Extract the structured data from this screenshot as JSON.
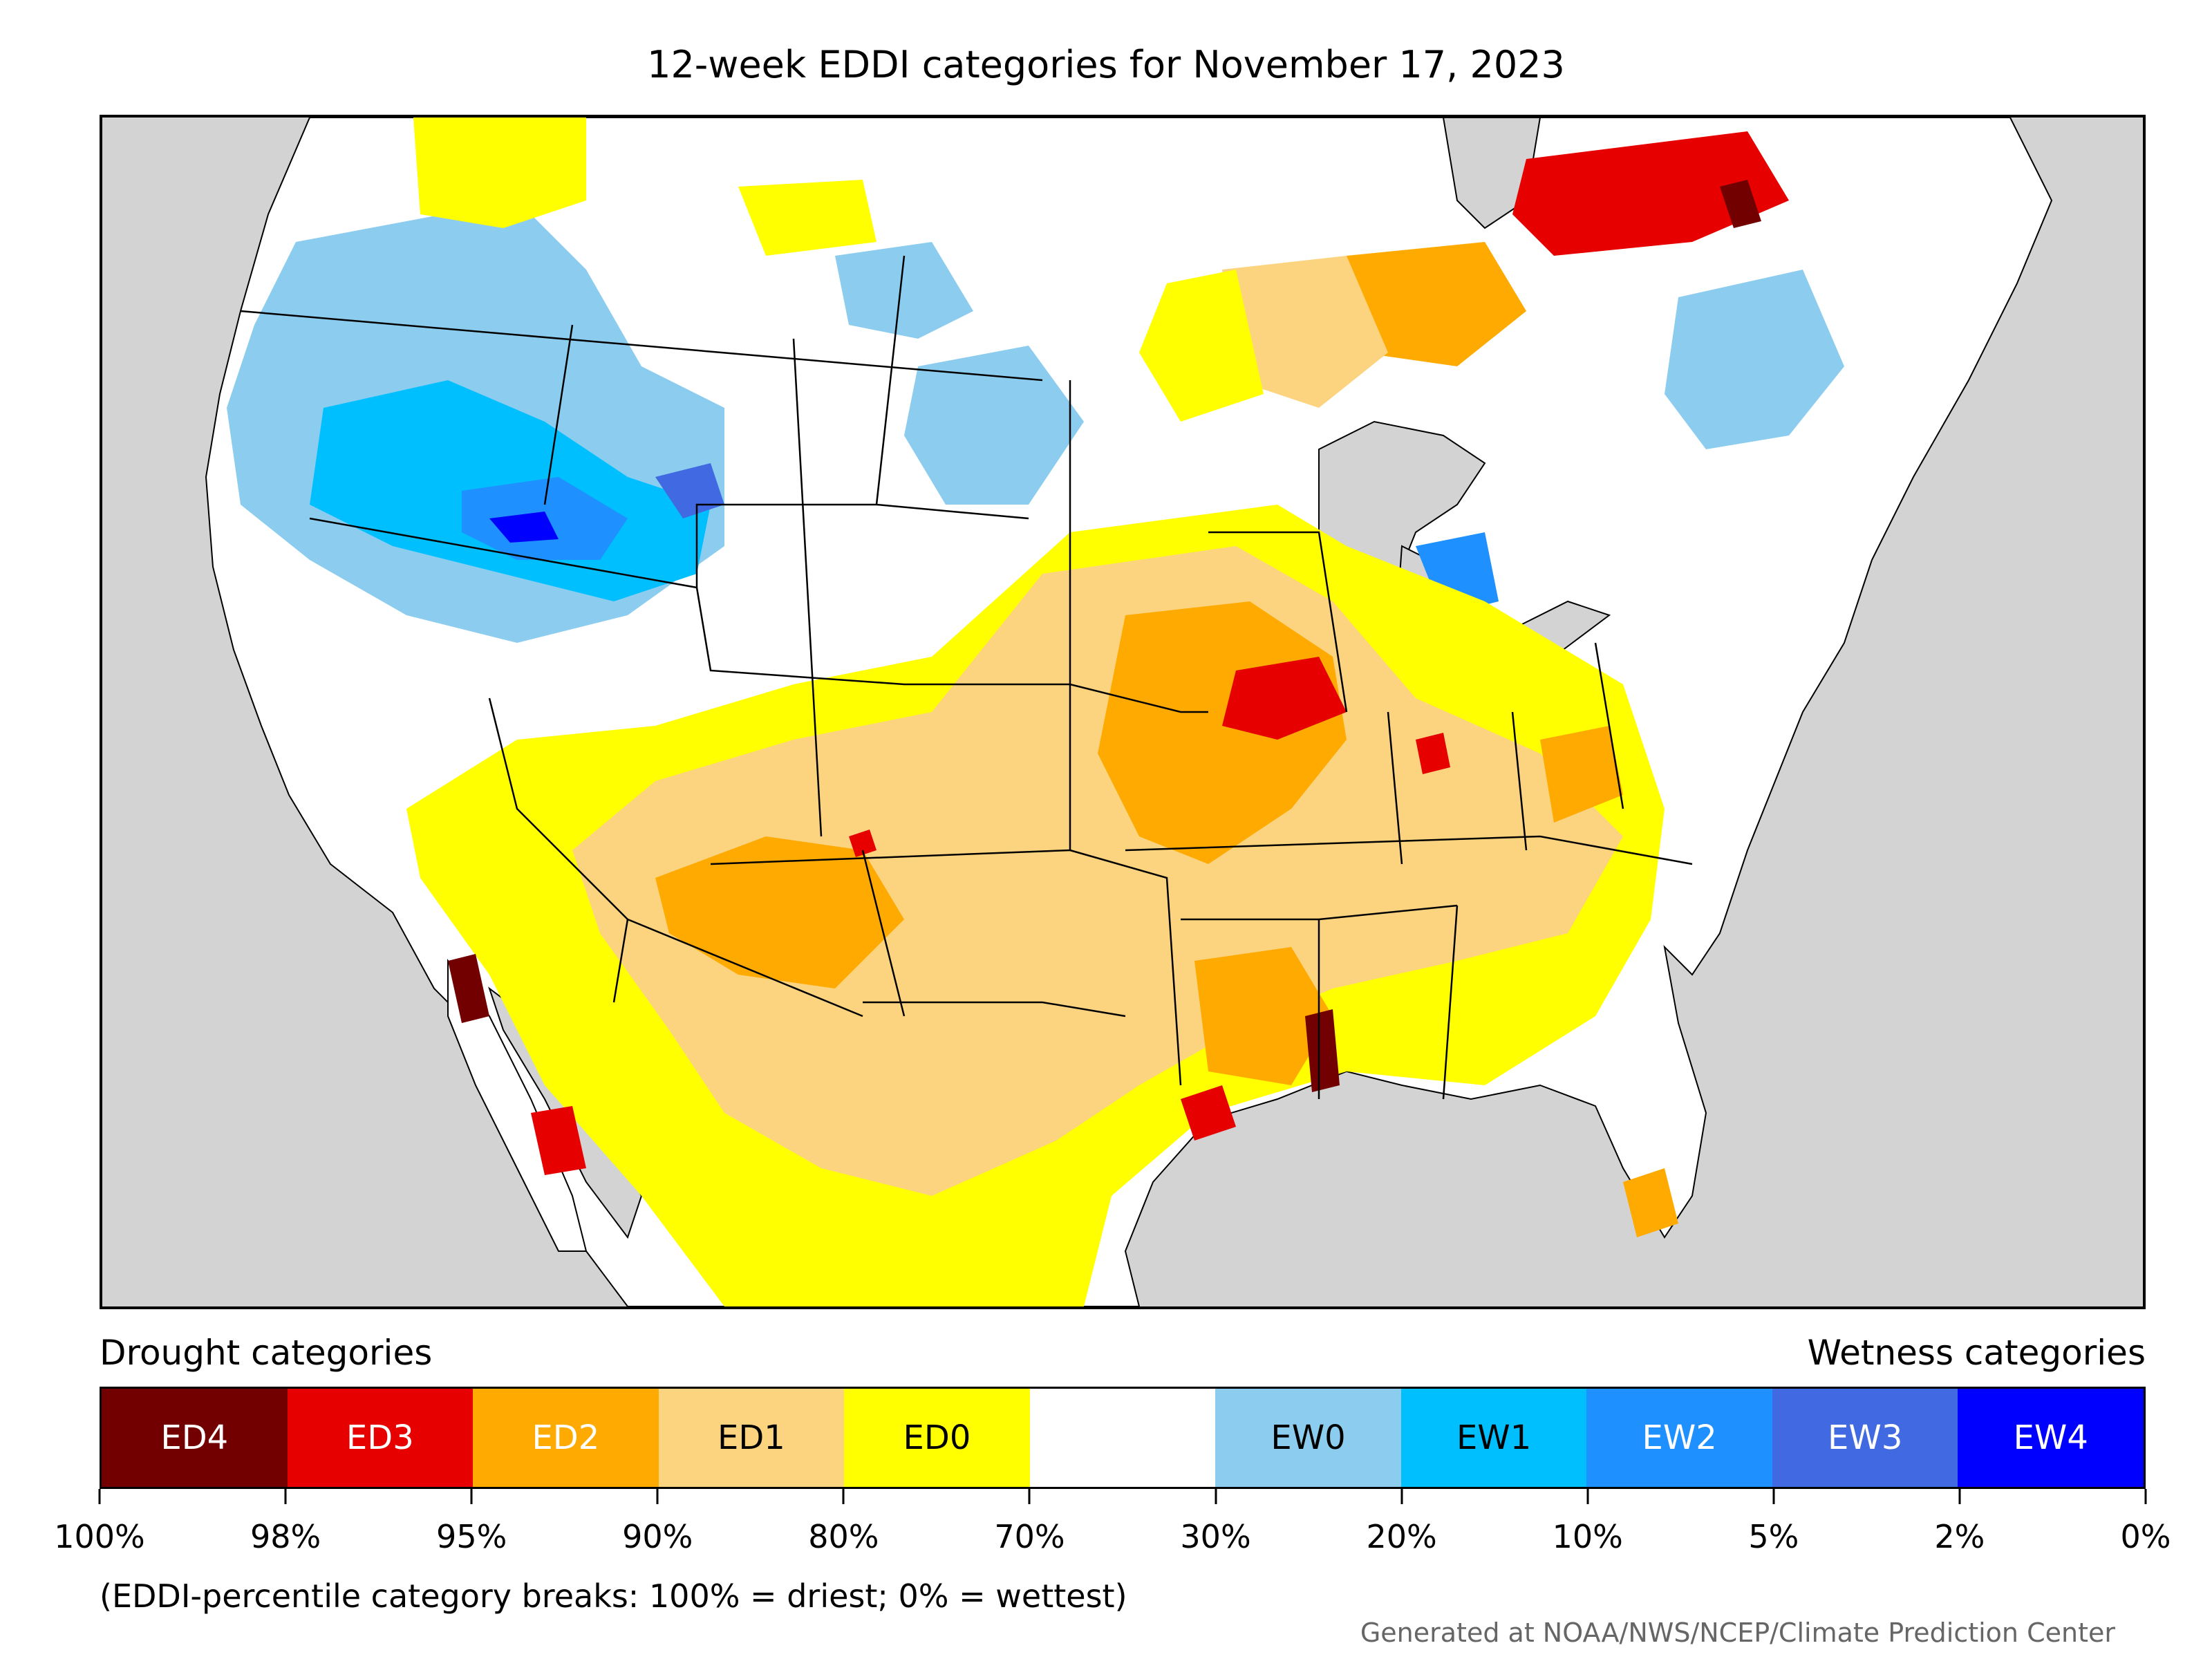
{
  "title": "12-week EDDI categories for November 17, 2023",
  "legend": {
    "drought_title": "Drought categories",
    "wetness_title": "Wetness categories",
    "categories": [
      {
        "label": "ED4",
        "color": "#730000",
        "text_color": "#ffffff"
      },
      {
        "label": "ED3",
        "color": "#e60000",
        "text_color": "#ffffff"
      },
      {
        "label": "ED2",
        "color": "#ffaa00",
        "text_color": "#ffffff"
      },
      {
        "label": "ED1",
        "color": "#fcd37f",
        "text_color": "#000000"
      },
      {
        "label": "ED0",
        "color": "#ffff00",
        "text_color": "#000000"
      },
      {
        "label": "",
        "color": "#ffffff",
        "text_color": "#000000"
      },
      {
        "label": "EW0",
        "color": "#8ccdef",
        "text_color": "#000000"
      },
      {
        "label": "EW1",
        "color": "#00bfff",
        "text_color": "#000000"
      },
      {
        "label": "EW2",
        "color": "#1e90ff",
        "text_color": "#ffffff"
      },
      {
        "label": "EW3",
        "color": "#4169e1",
        "text_color": "#ffffff"
      },
      {
        "label": "EW4",
        "color": "#0000ff",
        "text_color": "#ffffff"
      }
    ],
    "breaks": [
      "100%",
      "98%",
      "95%",
      "90%",
      "80%",
      "70%",
      "30%",
      "20%",
      "10%",
      "5%",
      "2%",
      "0%"
    ]
  },
  "note": "(EDDI-percentile category breaks: 100% = driest; 0% = wettest)",
  "credit": "Generated at NOAA/NWS/NCEP/Climate Prediction Center",
  "map_colors": {
    "ocean": "#d3d3d3",
    "land": "#ffffff",
    "boundary": "#000000"
  }
}
